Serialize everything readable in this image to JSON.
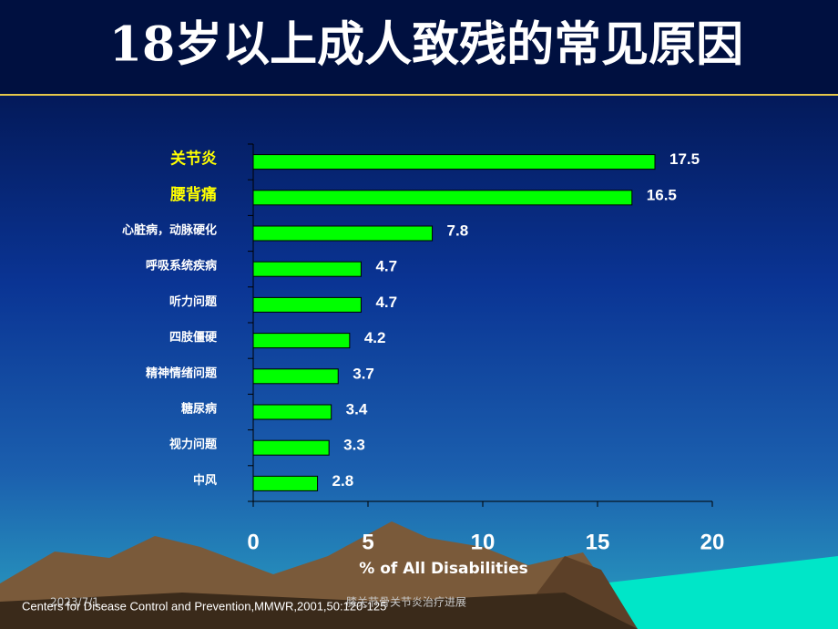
{
  "chart_data": {
    "type": "barh",
    "title": "18岁以上成人致残的常见原因",
    "categories": [
      "关节炎",
      "腰背痛",
      "心脏病，动脉硬化",
      "呼吸系统疾病",
      "听力问题",
      "四肢僵硬",
      "精神情绪问题",
      "糖尿病",
      "视力问题",
      "中风"
    ],
    "category_label_colors": [
      "#ffff00",
      "#ffff00",
      "#ffffff",
      "#ffffff",
      "#ffffff",
      "#ffffff",
      "#ffffff",
      "#ffffff",
      "#ffffff",
      "#ffffff"
    ],
    "values": [
      17.5,
      16.5,
      7.8,
      4.7,
      4.7,
      4.2,
      3.7,
      3.4,
      3.3,
      2.8
    ],
    "color": "#00ff00",
    "xlim": [
      0,
      20
    ],
    "xticks": [
      0,
      5,
      10,
      15,
      20
    ],
    "xlabel": "% of All Disabilities"
  },
  "footer": {
    "date": "2023/7/1",
    "source": "Centers for Disease Control and Prevention,MMWR,2001,50:120-125",
    "topic": "膝关节骨关节炎治疗进展"
  }
}
